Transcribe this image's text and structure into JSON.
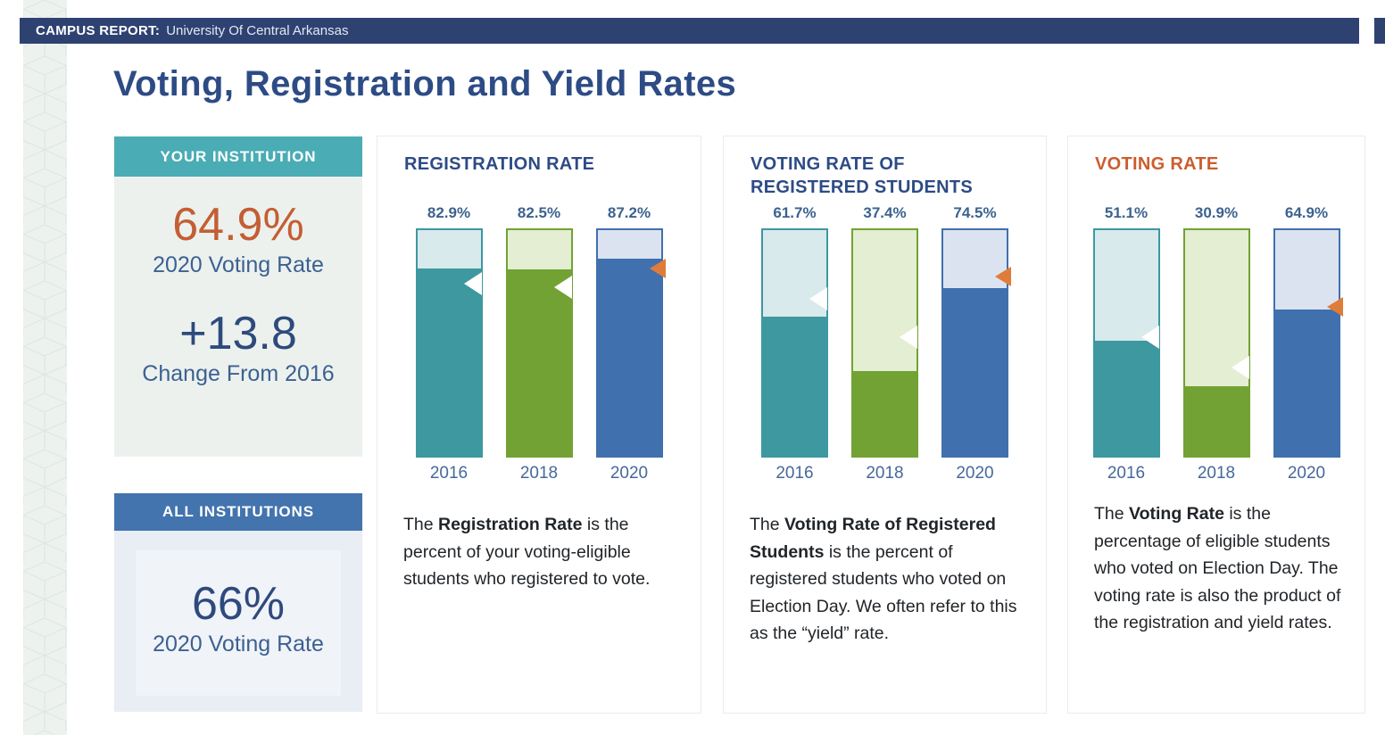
{
  "banner": {
    "label": "CAMPUS REPORT:",
    "institution": "University Of Central Arkansas"
  },
  "page": {
    "title": "Voting, Registration and Yield Rates"
  },
  "your_institution": {
    "header": "YOUR INSTITUTION",
    "primary_value": "64.9%",
    "primary_label": "2020 Voting Rate",
    "secondary_value": "+13.8",
    "secondary_label": "Change From 2016"
  },
  "all_institutions": {
    "header": "ALL INSTITUTIONS",
    "value": "66%",
    "label": "2020 Voting Rate"
  },
  "colors": {
    "banner_navy": "#2e4272",
    "heading_blue": "#2d4b85",
    "teal_header": "#4aacb4",
    "blue_header": "#4374ae",
    "accent_orange": "#c45e33",
    "value_navy": "#2e4a7d",
    "label_blue": "#3c6191",
    "marker_orange": "#e07c3a",
    "marker_white": "#ffffff"
  },
  "chart_data": [
    {
      "type": "bar",
      "title": "REGISTRATION RATE",
      "title_color": "#2d4b85",
      "categories": [
        "2016",
        "2018",
        "2020"
      ],
      "ylim": [
        0,
        100
      ],
      "bars": [
        {
          "year": "2016",
          "label": "82.9%",
          "value": 82.9,
          "color": "#3d98a0",
          "tint": "#d8eaec",
          "benchmark": 76.2,
          "benchmark_style": "white",
          "benchmark_color": "#ffffff"
        },
        {
          "year": "2018",
          "label": "82.5%",
          "value": 82.5,
          "color": "#72a233",
          "tint": "#e4eed2",
          "benchmark": 74.7,
          "benchmark_style": "white",
          "benchmark_color": "#ffffff"
        },
        {
          "year": "2020",
          "label": "87.2%",
          "value": 87.2,
          "color": "#4070ae",
          "tint": "#dce3f0",
          "benchmark": 83.2,
          "benchmark_style": "orange",
          "benchmark_color": "#e07c3a"
        }
      ],
      "description": {
        "prefix": "The ",
        "bold": "Registration Rate",
        "rest": " is the percent of your voting-eligible students who registered to vote."
      }
    },
    {
      "type": "bar",
      "title": "VOTING RATE OF REGISTERED STUDENTS",
      "title_color": "#2d4b85",
      "categories": [
        "2016",
        "2018",
        "2020"
      ],
      "ylim": [
        0,
        100
      ],
      "bars": [
        {
          "year": "2016",
          "label": "61.7%",
          "value": 61.7,
          "color": "#3d98a0",
          "tint": "#d8eaec",
          "benchmark": 69.4,
          "benchmark_style": "white",
          "benchmark_color": "#ffffff"
        },
        {
          "year": "2018",
          "label": "37.4%",
          "value": 37.4,
          "color": "#72a233",
          "tint": "#e4eed2",
          "benchmark": 52.4,
          "benchmark_style": "white",
          "benchmark_color": "#ffffff"
        },
        {
          "year": "2020",
          "label": "74.5%",
          "value": 74.5,
          "color": "#4070ae",
          "tint": "#dce3f0",
          "benchmark": 79.5,
          "benchmark_style": "orange",
          "benchmark_color": "#e07c3a"
        }
      ],
      "description": {
        "prefix": "The ",
        "bold": "Voting Rate of Registered Students",
        "rest": " is the percent of registered students who voted on Election Day. We often refer to this as the “yield” rate."
      }
    },
    {
      "type": "bar",
      "title": "VOTING RATE",
      "title_color": "#cb5e2e",
      "categories": [
        "2016",
        "2018",
        "2020"
      ],
      "ylim": [
        0,
        100
      ],
      "bars": [
        {
          "year": "2016",
          "label": "51.1%",
          "value": 51.1,
          "color": "#3d98a0",
          "tint": "#d8eaec",
          "benchmark": 52.6,
          "benchmark_style": "white",
          "benchmark_color": "#ffffff"
        },
        {
          "year": "2018",
          "label": "30.9%",
          "value": 30.9,
          "color": "#72a233",
          "tint": "#e4eed2",
          "benchmark": 39.1,
          "benchmark_style": "white",
          "benchmark_color": "#ffffff"
        },
        {
          "year": "2020",
          "label": "64.9%",
          "value": 64.9,
          "color": "#4070ae",
          "tint": "#dce3f0",
          "benchmark": 66.0,
          "benchmark_style": "orange",
          "benchmark_color": "#e07c3a"
        }
      ],
      "description": {
        "prefix": "The ",
        "bold": "Voting Rate",
        "rest": " is the percentage of eligible students who voted on Election Day. The voting rate is also the product of the registration and yield rates."
      }
    }
  ]
}
